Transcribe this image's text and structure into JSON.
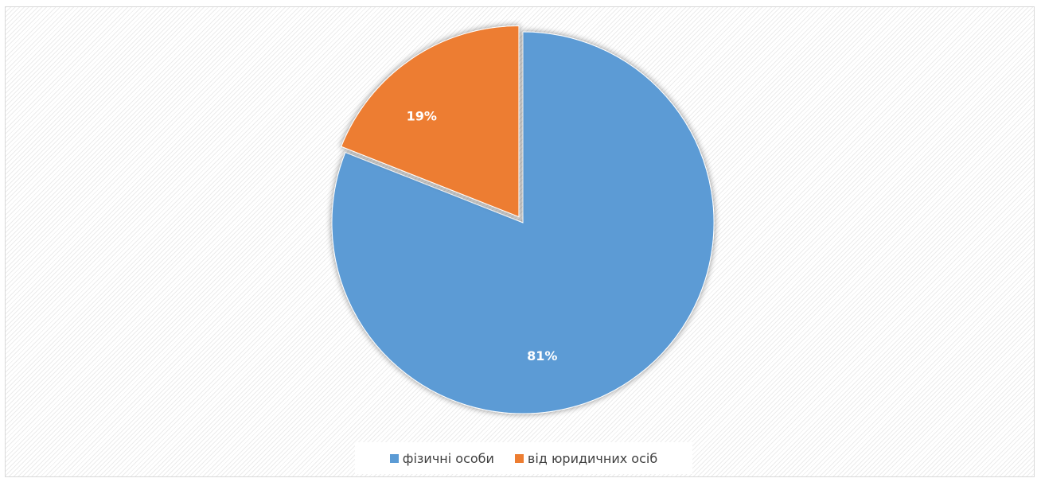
{
  "chart_data": {
    "type": "pie",
    "title": "",
    "slices": [
      {
        "label": "фізичні особи",
        "value": 81,
        "display": "81%",
        "color": "#5b9bd5"
      },
      {
        "label": "від юридичних осіб",
        "value": 19,
        "display": "19%",
        "color": "#ed7d31"
      }
    ],
    "start_angle_deg": 0,
    "direction": "clockwise",
    "exploded_slice": "від юридичних осіб",
    "legend": {
      "position": "bottom"
    },
    "data_labels": {
      "color": "#ffffff",
      "bold": true
    }
  }
}
